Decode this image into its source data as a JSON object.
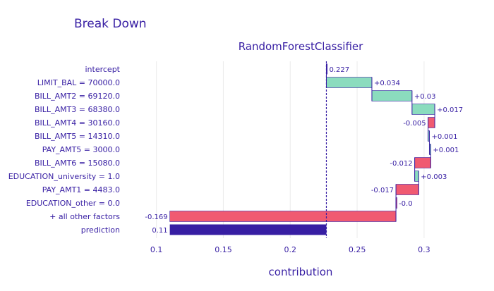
{
  "chart_data": {
    "type": "waterfall",
    "title": "Break Down",
    "subtitle": "RandomForestClassifier",
    "xlabel": "contribution",
    "xlim": [
      0.0775,
      0.3375
    ],
    "xticks": [
      "0.1",
      "0.15",
      "0.2",
      "0.25",
      "0.3"
    ],
    "xtick_values": [
      0.1,
      0.15,
      0.2,
      0.25,
      0.3
    ],
    "baseline": 0.227,
    "grid": true,
    "colors": {
      "positive": "#8bdcbe",
      "negative": "#f05a71",
      "prediction": "#371ea3",
      "connector": "#371ea3",
      "baseline": "#371ea3",
      "grid": "#ebebeb"
    },
    "rows": [
      {
        "label": "intercept",
        "start": 0.227,
        "end": 0.227,
        "value_label": "0.227",
        "kind": "intercept"
      },
      {
        "label": "LIMIT_BAL = 70000.0",
        "start": 0.227,
        "end": 0.261,
        "value_label": "+0.034",
        "kind": "positive"
      },
      {
        "label": "BILL_AMT2 = 69120.0",
        "start": 0.261,
        "end": 0.291,
        "value_label": "+0.03",
        "kind": "positive"
      },
      {
        "label": "BILL_AMT3 = 68380.0",
        "start": 0.291,
        "end": 0.308,
        "value_label": "+0.017",
        "kind": "positive"
      },
      {
        "label": "BILL_AMT4 = 30160.0",
        "start": 0.308,
        "end": 0.303,
        "value_label": "-0.005",
        "kind": "negative"
      },
      {
        "label": "BILL_AMT5 = 14310.0",
        "start": 0.303,
        "end": 0.304,
        "value_label": "+0.001",
        "kind": "positive"
      },
      {
        "label": "PAY_AMT5 = 3000.0",
        "start": 0.304,
        "end": 0.305,
        "value_label": "+0.001",
        "kind": "positive"
      },
      {
        "label": "BILL_AMT6 = 15080.0",
        "start": 0.305,
        "end": 0.293,
        "value_label": "-0.012",
        "kind": "negative"
      },
      {
        "label": "EDUCATION_university = 1.0",
        "start": 0.293,
        "end": 0.296,
        "value_label": "+0.003",
        "kind": "positive"
      },
      {
        "label": "PAY_AMT1 = 4483.0",
        "start": 0.296,
        "end": 0.279,
        "value_label": "-0.017",
        "kind": "negative"
      },
      {
        "label": "EDUCATION_other = 0.0",
        "start": 0.279,
        "end": 0.279,
        "value_label": "-0.0",
        "kind": "negative"
      },
      {
        "label": "+ all other factors",
        "start": 0.279,
        "end": 0.11,
        "value_label": "-0.169",
        "kind": "negative"
      },
      {
        "label": "prediction",
        "start": 0.227,
        "end": 0.11,
        "value_label": "0.11",
        "kind": "prediction"
      }
    ]
  }
}
